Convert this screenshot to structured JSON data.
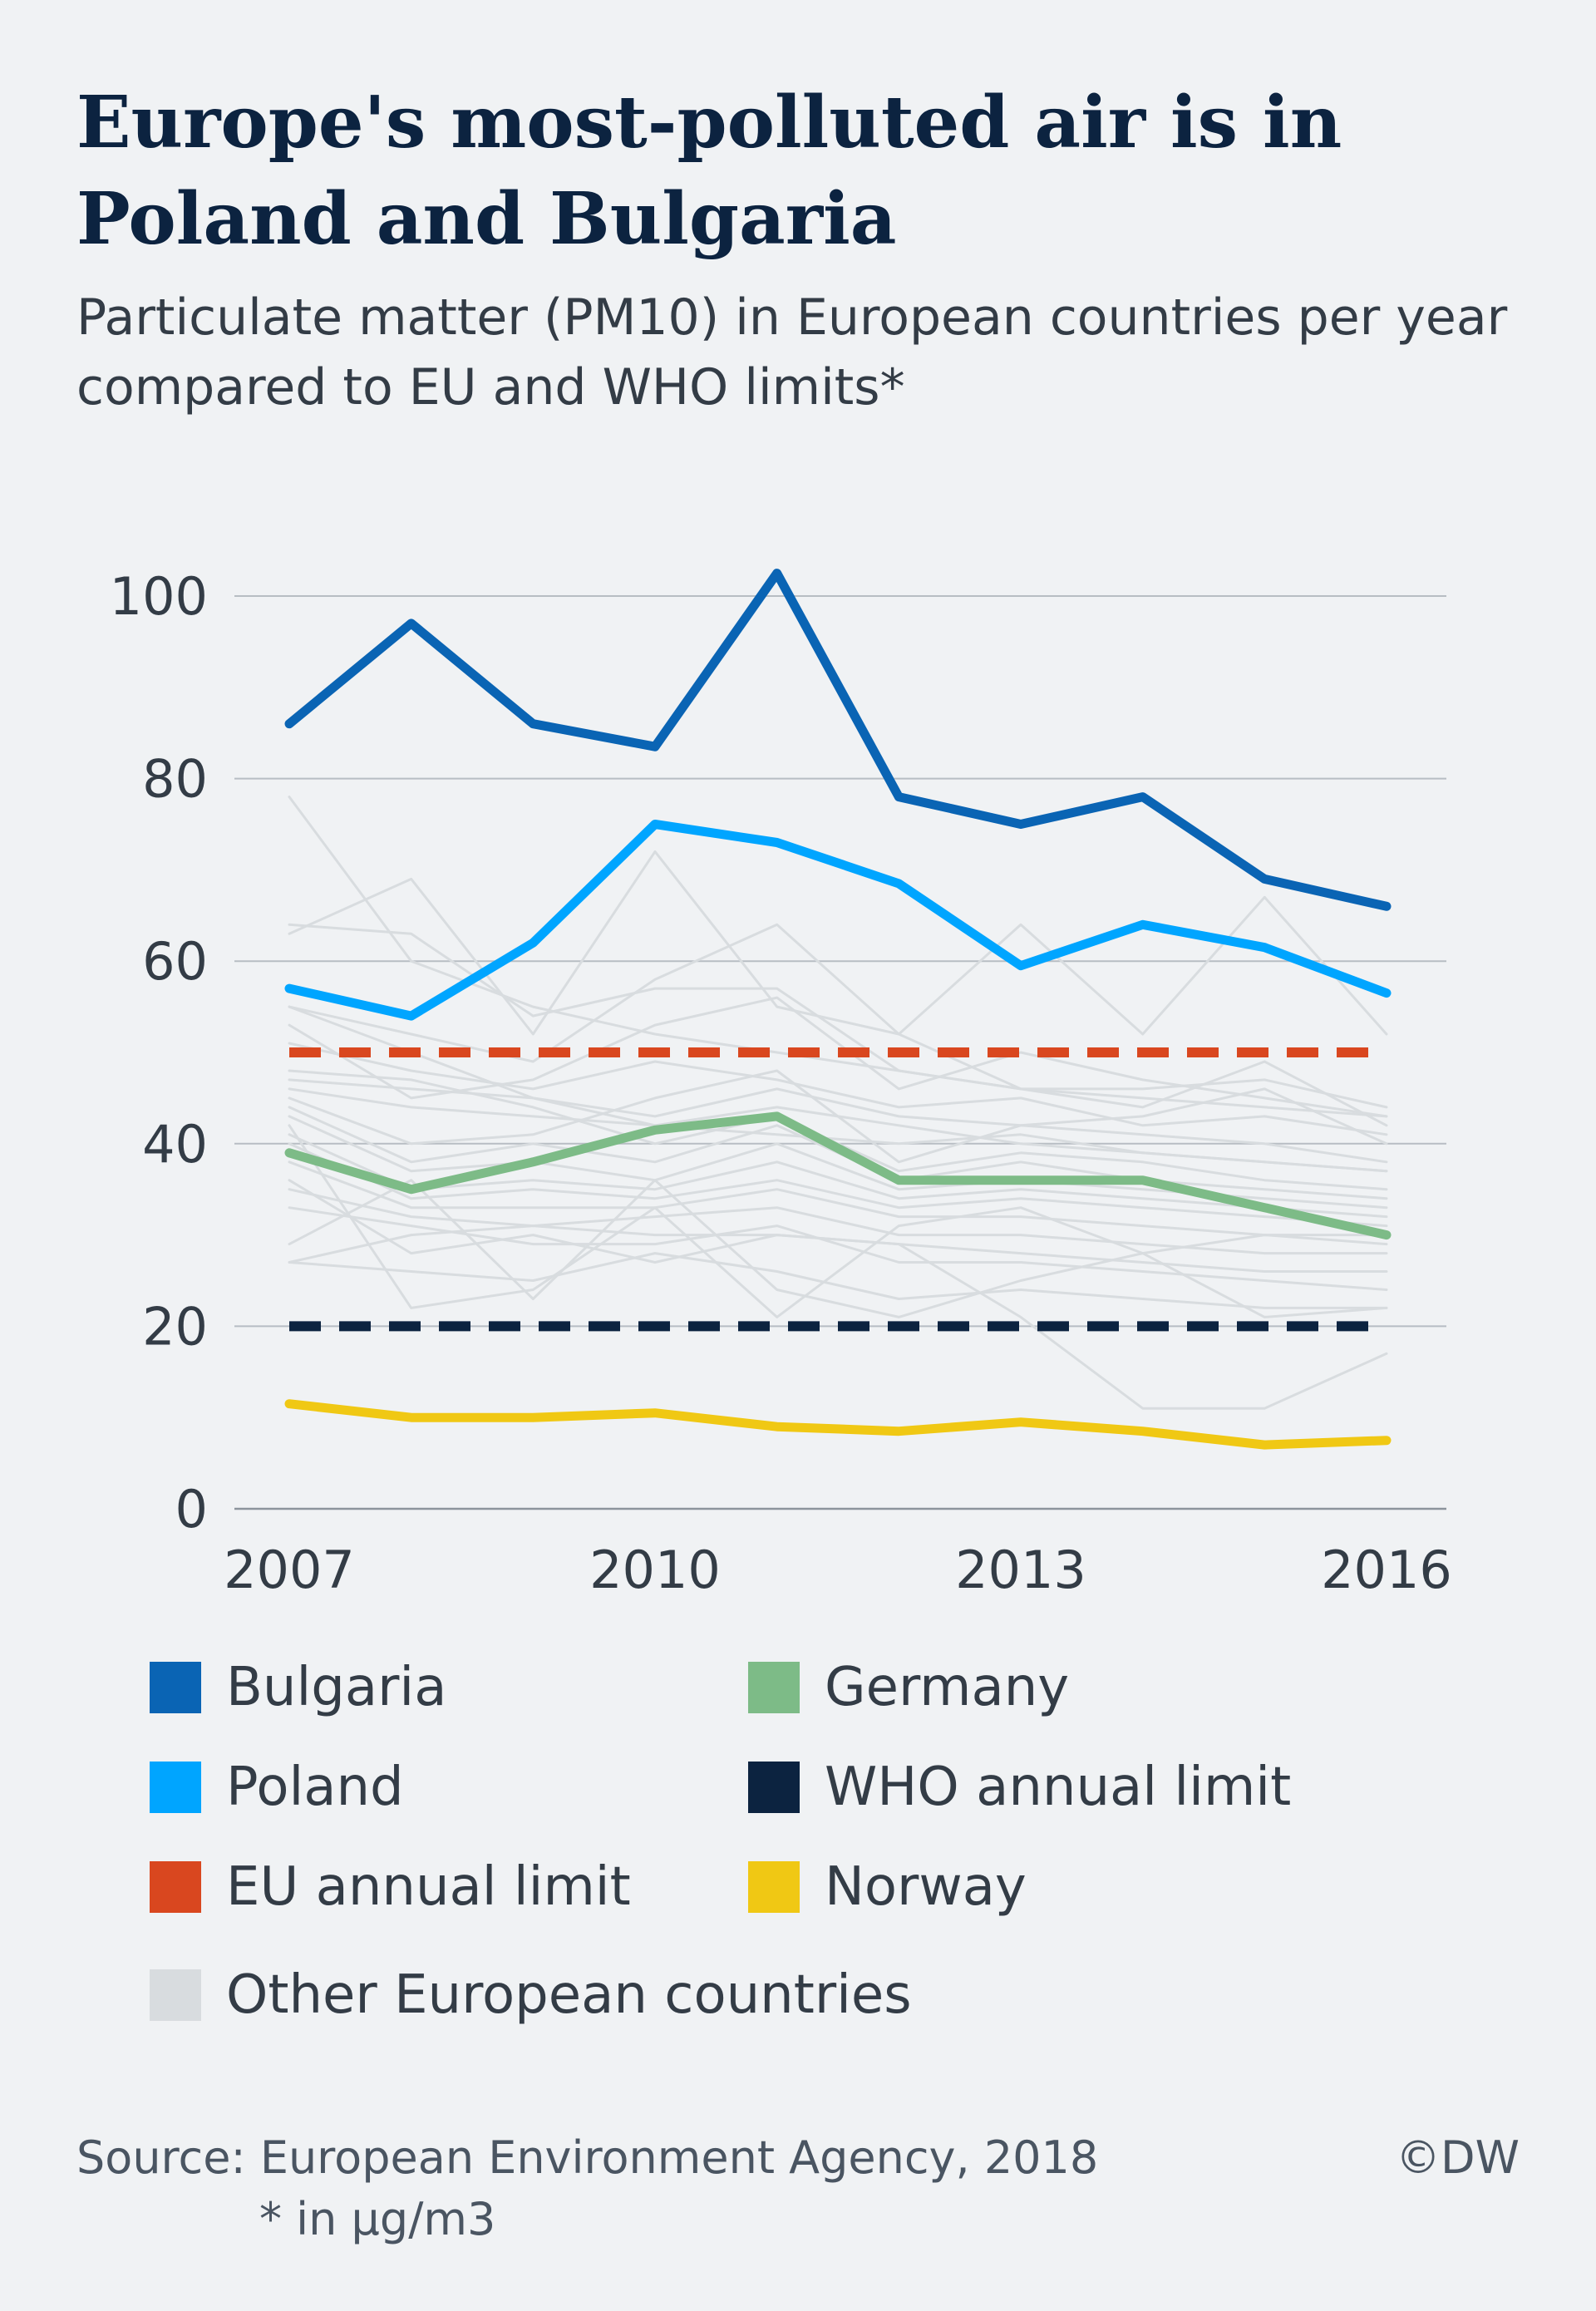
{
  "chart_data": {
    "type": "line",
    "title": "Europe's most-polluted air is in Poland and Bulgaria",
    "subtitle": "Particulate matter (PM10) in European countries per year compared to EU and WHO limits*",
    "xlabel": "",
    "ylabel": "",
    "xlim": [
      2007,
      2016
    ],
    "ylim": [
      0,
      100
    ],
    "y_ticks": [
      "0",
      "20",
      "40",
      "60",
      "80",
      "100"
    ],
    "x_ticks": [
      "2007",
      "2010",
      "2013",
      "2016"
    ],
    "grid": "horizontal",
    "legend_position": "bottom",
    "x": [
      2007,
      2008,
      2009,
      2010,
      2011,
      2012,
      2013,
      2014,
      2015,
      2016
    ],
    "series": [
      {
        "name": "Bulgaria",
        "color": "#0a64b4",
        "style": "solid",
        "values": [
          86,
          97,
          86,
          83.5,
          102.5,
          78,
          75,
          78,
          69,
          66
        ]
      },
      {
        "name": "Poland",
        "color": "#00a5ff",
        "style": "solid",
        "values": [
          57,
          54,
          62,
          75,
          73,
          68.5,
          59.5,
          64,
          61.5,
          56.5
        ]
      },
      {
        "name": "EU annual limit",
        "color": "#d9471f",
        "style": "dashed",
        "values": [
          50,
          50,
          50,
          50,
          50,
          50,
          50,
          50,
          50,
          50
        ]
      },
      {
        "name": "Germany",
        "color": "#7dbb87",
        "style": "solid",
        "values": [
          39,
          35,
          38,
          41.5,
          43,
          36,
          36,
          36,
          33,
          30
        ]
      },
      {
        "name": "WHO annual limit",
        "color": "#0c2340",
        "style": "dashed",
        "values": [
          20,
          20,
          20,
          20,
          20,
          20,
          20,
          20,
          20,
          20
        ]
      },
      {
        "name": "Norway",
        "color": "#f0c814",
        "style": "solid",
        "values": [
          11.5,
          10,
          10,
          10.5,
          9,
          8.5,
          9.5,
          8.5,
          7,
          7.5
        ]
      },
      {
        "name": "Other European countries",
        "color": "#d8dcdf",
        "style": "solid",
        "values": [
          [
            78,
            60,
            55,
            52,
            50,
            48,
            46,
            45,
            44,
            43
          ],
          [
            64,
            63,
            54,
            57,
            57,
            48,
            46,
            46,
            47,
            44
          ],
          [
            63,
            69,
            52,
            72,
            55,
            52,
            64,
            52,
            67,
            52
          ],
          [
            55,
            52,
            49,
            58,
            64,
            52,
            46,
            44,
            49,
            42
          ],
          [
            53,
            45,
            47,
            53,
            56,
            46,
            50,
            47,
            45,
            43
          ],
          [
            51,
            48,
            46,
            49,
            47,
            44,
            45,
            42,
            43,
            41
          ],
          [
            47,
            46,
            45,
            43,
            46,
            43,
            42,
            41,
            40,
            38
          ],
          [
            46,
            44,
            43,
            42,
            44,
            42,
            40,
            39,
            38,
            37
          ],
          [
            45,
            40,
            41,
            45,
            48,
            38,
            42,
            43,
            46,
            40
          ],
          [
            44,
            38,
            40,
            38,
            42,
            36,
            38,
            36,
            35,
            34
          ],
          [
            43,
            37,
            38,
            36,
            40,
            35,
            36,
            35,
            34,
            33
          ],
          [
            42,
            22,
            24,
            33,
            21,
            31,
            33,
            28,
            30,
            29
          ],
          [
            41,
            35,
            36,
            35,
            38,
            34,
            35,
            34,
            33,
            32
          ],
          [
            40,
            34,
            35,
            34,
            36,
            33,
            34,
            33,
            32,
            31
          ],
          [
            38,
            33,
            33,
            33,
            35,
            32,
            32,
            31,
            30,
            30
          ],
          [
            35,
            32,
            31,
            32,
            33,
            30,
            30,
            29,
            28,
            28
          ],
          [
            29,
            36,
            23,
            36,
            24,
            21,
            25,
            28,
            21,
            22
          ],
          [
            27,
            30,
            31,
            30,
            30,
            29,
            28,
            27,
            26,
            26
          ],
          [
            27,
            26,
            25,
            28,
            26,
            23,
            24,
            23,
            22,
            22
          ],
          [
            36,
            28,
            30,
            27,
            30,
            29,
            21,
            11,
            11,
            17
          ],
          [
            55,
            50,
            45,
            42,
            41,
            40,
            41,
            39,
            38,
            37
          ],
          [
            48,
            47,
            44,
            40,
            43,
            37,
            39,
            38,
            36,
            35
          ],
          [
            33,
            31,
            29,
            29,
            31,
            27,
            27,
            26,
            25,
            24
          ]
        ]
      }
    ]
  },
  "legend": [
    {
      "label": "Bulgaria",
      "color": "#0a64b4"
    },
    {
      "label": "Germany",
      "color": "#7dbb87"
    },
    {
      "label": "Poland",
      "color": "#00a5ff"
    },
    {
      "label": "WHO annual limit",
      "color": "#0c2340"
    },
    {
      "label": "EU annual limit",
      "color": "#d9471f"
    },
    {
      "label": "Norway",
      "color": "#f0c814"
    },
    {
      "label": "Other European countries",
      "color": "#d8dcdf"
    }
  ],
  "footer": {
    "source": "Source: European Environment Agency, 2018",
    "unit_note": "* in µg/m3",
    "credit": "©DW"
  }
}
